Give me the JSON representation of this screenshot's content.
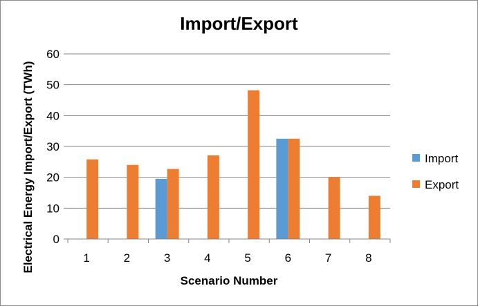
{
  "chart_data": {
    "type": "bar",
    "title": "Import/Export",
    "xlabel": "Scenario Number",
    "ylabel": "Electrical Energy Import/Export (TWh)",
    "categories": [
      "1",
      "2",
      "3",
      "4",
      "5",
      "6",
      "7",
      "8"
    ],
    "ylim": [
      0,
      60
    ],
    "yticks": [
      0,
      10,
      20,
      30,
      40,
      50,
      60
    ],
    "grid": true,
    "legend_position": "right",
    "series": [
      {
        "name": "Import",
        "color": "#5b9bd5",
        "values": [
          0,
          0,
          19.5,
          0,
          0,
          32.5,
          0,
          0
        ]
      },
      {
        "name": "Export",
        "color": "#ed7d31",
        "values": [
          25.8,
          24,
          22.7,
          27.1,
          48.2,
          32.5,
          20,
          14
        ]
      }
    ]
  }
}
